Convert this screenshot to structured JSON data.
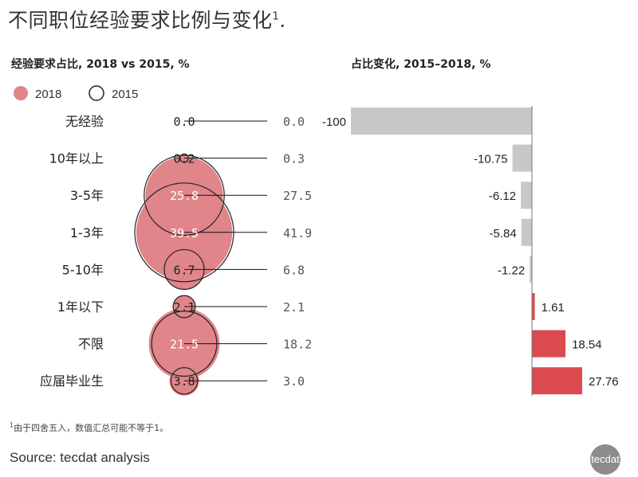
{
  "title": "不同职位经验要求比例与变化",
  "title_sup": "1",
  "title_suffix": ".",
  "left_subtitle": "经验要求占比, 2018  vs  2015, %",
  "right_subtitle": "占比变化, 2015–2018, %",
  "legend": [
    {
      "label": "2018",
      "style": "filled"
    },
    {
      "label": "2015",
      "style": "outline"
    }
  ],
  "colors": {
    "fill_2018": "#e0858a",
    "outline_2015": "#222222",
    "bar_negative": "#c8c8c8",
    "bar_positive": "#db4b4e",
    "text_muted": "#555555"
  },
  "chart_data": [
    {
      "type": "scatter",
      "subtype": "bubble",
      "categories": [
        "无经验",
        "10年以上",
        "3-5年",
        "1-3年",
        "5-10年",
        "1年以下",
        "不限",
        "应届毕业生"
      ],
      "series": [
        {
          "name": "2018",
          "values": [
            0.0,
            0.2,
            25.8,
            39.5,
            6.7,
            2.1,
            21.5,
            3.8
          ]
        },
        {
          "name": "2015",
          "values": [
            0.0,
            0.3,
            27.5,
            41.9,
            6.8,
            2.1,
            18.2,
            3.0
          ]
        }
      ],
      "value_labels_2018": [
        "0.0",
        "0.2",
        "25.8",
        "39.5",
        "6.7",
        "2.1",
        "21.5",
        "3.8"
      ],
      "value_labels_2015": [
        "0.0",
        "0.3",
        "27.5",
        "41.9",
        "6.8",
        "2.1",
        "18.2",
        "3.0"
      ]
    },
    {
      "type": "bar",
      "orientation": "horizontal",
      "categories": [
        "无经验",
        "10年以上",
        "3-5年",
        "1-3年",
        "5-10年",
        "1年以下",
        "不限",
        "应届毕业生"
      ],
      "values": [
        -100,
        -10.75,
        -6.12,
        -5.84,
        -1.22,
        1.61,
        18.54,
        27.76
      ],
      "value_labels": [
        "-100",
        "-10.75",
        "-6.12",
        "-5.84",
        "-1.22",
        "1.61",
        "18.54",
        "27.76"
      ],
      "xlim": [
        -100,
        28
      ]
    }
  ],
  "footnote_sup": "1",
  "footnote": "由于四舍五入，数值汇总可能不等于1。",
  "source": "Source: tecdat analysis",
  "logo_text": "tecdat"
}
